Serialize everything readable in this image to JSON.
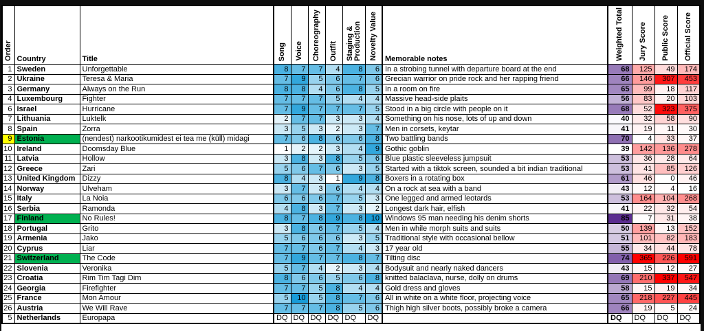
{
  "table": {
    "headers": {
      "order": "Order",
      "country": "Country",
      "title": "Title",
      "song": "Song",
      "voice": "Voice",
      "choreography": "Choreography",
      "outfit": "Outfit",
      "staging": "Staging & Production",
      "novelty": "Novelty Value",
      "notes": "Memorable notes",
      "weighted": "Weighted Total",
      "jury": "Jury Score",
      "public": "Public Score",
      "official": "Official Score"
    },
    "rows": [
      {
        "order": 1,
        "country": "Sweden",
        "title": "Unforgettable",
        "scores": [
          8,
          7,
          7,
          4,
          8,
          6
        ],
        "note": "In a strobing tunnel with departure board at the end",
        "weighted": 68,
        "jury": 125,
        "public": 49,
        "official": 174
      },
      {
        "order": 2,
        "country": "Ukraine",
        "title": "Teresa & Maria",
        "scores": [
          7,
          9,
          5,
          6,
          7,
          6
        ],
        "note": "Grecian warrior on pride rock and her rapping friend",
        "weighted": 66,
        "jury": 146,
        "public": 307,
        "official": 453
      },
      {
        "order": 3,
        "country": "Germany",
        "title": "Always on the Run",
        "scores": [
          8,
          8,
          4,
          6,
          8,
          5
        ],
        "note": "In a room on fire",
        "weighted": 65,
        "jury": 99,
        "public": 18,
        "official": 117
      },
      {
        "order": 4,
        "country": "Luxembourg",
        "title": "Fighter",
        "scores": [
          7,
          7,
          7,
          5,
          4,
          4
        ],
        "note": "Massive head-side plaits",
        "weighted": 56,
        "jury": 83,
        "public": 20,
        "official": 103
      },
      {
        "order": 6,
        "country": "Israel",
        "title": "Hurricane",
        "scores": [
          7,
          9,
          7,
          7,
          7,
          5
        ],
        "note": "Stood in a big circle with people on it",
        "weighted": 68,
        "jury": 52,
        "public": 323,
        "official": 375
      },
      {
        "order": 7,
        "country": "Lithuania",
        "title": "Luktelk",
        "scores": [
          2,
          7,
          7,
          3,
          3,
          4
        ],
        "note": "Something on his nose, lots of up and down",
        "weighted": 40,
        "jury": 32,
        "public": 58,
        "official": 90
      },
      {
        "order": 8,
        "country": "Spain",
        "title": "Zorra",
        "scores": [
          3,
          5,
          3,
          2,
          3,
          7
        ],
        "note": "Men in corsets, keytar",
        "weighted": 41,
        "jury": 19,
        "public": 11,
        "official": 30
      },
      {
        "order": 9,
        "country": "Estonia",
        "title": "(nendest) narkootikumidest ei tea me (küll) midagi",
        "scores": [
          7,
          6,
          8,
          6,
          6,
          8
        ],
        "note": "Two battling bands",
        "weighted": 70,
        "jury": 4,
        "public": 33,
        "official": 37,
        "order_highlight": "yellow",
        "country_highlight": "green"
      },
      {
        "order": 10,
        "country": "Ireland",
        "title": "Doomsday Blue",
        "scores": [
          1,
          2,
          2,
          3,
          4,
          9
        ],
        "note": "Gothic goblin",
        "weighted": 39,
        "jury": 142,
        "public": 136,
        "official": 278
      },
      {
        "order": 11,
        "country": "Latvia",
        "title": "Hollow",
        "scores": [
          3,
          8,
          3,
          8,
          5,
          6
        ],
        "note": "Blue plastic sleeveless jumpsuit",
        "weighted": 53,
        "jury": 36,
        "public": 28,
        "official": 64
      },
      {
        "order": 12,
        "country": "Greece",
        "title": "Zari",
        "scores": [
          5,
          6,
          7,
          6,
          3,
          5
        ],
        "note": "Started with a tiktok screen, sounded a bit indian traditional",
        "weighted": 53,
        "jury": 41,
        "public": 85,
        "official": 126
      },
      {
        "order": 13,
        "country": "United Kingdom",
        "title": "Dizzy",
        "scores": [
          8,
          4,
          3,
          1,
          9,
          8
        ],
        "note": "Boxers in a rotating box",
        "weighted": 61,
        "jury": 46,
        "public": 0,
        "official": 46
      },
      {
        "order": 14,
        "country": "Norway",
        "title": "Ulveham",
        "scores": [
          3,
          7,
          3,
          6,
          4,
          4
        ],
        "note": "On a rock at sea with a band",
        "weighted": 43,
        "jury": 12,
        "public": 4,
        "official": 16
      },
      {
        "order": 15,
        "country": "Italy",
        "title": "La Noia",
        "scores": [
          6,
          6,
          6,
          7,
          5,
          3
        ],
        "note": "One legged and armed leotards",
        "weighted": 53,
        "jury": 164,
        "public": 104,
        "official": 268
      },
      {
        "order": 16,
        "country": "Serbia",
        "title": "Ramonda",
        "scores": [
          4,
          8,
          3,
          7,
          3,
          2
        ],
        "note": "Longest dark hair, elfish",
        "weighted": 41,
        "jury": 22,
        "public": 32,
        "official": 54
      },
      {
        "order": 17,
        "country": "Finland",
        "title": "No Rules!",
        "scores": [
          8,
          7,
          8,
          9,
          8,
          10
        ],
        "note": "Windows 95 man needing his denim shorts",
        "weighted": 85,
        "jury": 7,
        "public": 31,
        "official": 38,
        "country_highlight": "green"
      },
      {
        "order": 18,
        "country": "Portugal",
        "title": "Grito",
        "scores": [
          3,
          8,
          6,
          7,
          5,
          4
        ],
        "note": "Men in while morph suits and suits",
        "weighted": 50,
        "jury": 139,
        "public": 13,
        "official": 152
      },
      {
        "order": 19,
        "country": "Armenia",
        "title": "Jako",
        "scores": [
          5,
          6,
          6,
          6,
          3,
          5
        ],
        "note": "Traditional style with occasional bellow",
        "weighted": 51,
        "jury": 101,
        "public": 82,
        "official": 183
      },
      {
        "order": 20,
        "country": "Cyprus",
        "title": "Liar",
        "scores": [
          7,
          7,
          6,
          7,
          4,
          3
        ],
        "note": "17 year old",
        "weighted": 55,
        "jury": 34,
        "public": 44,
        "official": 78
      },
      {
        "order": 21,
        "country": "Switzerland",
        "title": "The Code",
        "scores": [
          7,
          9,
          7,
          7,
          8,
          7
        ],
        "note": "Tilting disc",
        "weighted": 74,
        "jury": 365,
        "public": 226,
        "official": 591,
        "country_highlight": "green"
      },
      {
        "order": 22,
        "country": "Slovenia",
        "title": "Veronika",
        "scores": [
          5,
          7,
          4,
          2,
          3,
          4
        ],
        "note": "Bodysuit and nearly naked dancers",
        "weighted": 43,
        "jury": 15,
        "public": 12,
        "official": 27
      },
      {
        "order": 23,
        "country": "Croatia",
        "title": "Rim Tim Tagi Dim",
        "scores": [
          8,
          6,
          6,
          5,
          6,
          8
        ],
        "note": "knitted balaclava, nurse, dolly on drums",
        "weighted": 69,
        "jury": 210,
        "public": 337,
        "official": 547
      },
      {
        "order": 24,
        "country": "Georgia",
        "title": "Firefighter",
        "scores": [
          7,
          7,
          5,
          8,
          4,
          4
        ],
        "note": "Gold dress and gloves",
        "weighted": 58,
        "jury": 15,
        "public": 19,
        "official": 34
      },
      {
        "order": 25,
        "country": "France",
        "title": "Mon Amour",
        "scores": [
          5,
          10,
          5,
          8,
          7,
          6
        ],
        "note": "All in white on a white floor, projecting voice",
        "weighted": 65,
        "jury": 218,
        "public": 227,
        "official": 445
      },
      {
        "order": 26,
        "country": "Austria",
        "title": "We Will Rave",
        "scores": [
          7,
          7,
          7,
          8,
          5,
          6
        ],
        "note": "Thigh high silver boots, possibly broke a camera",
        "weighted": 66,
        "jury": 19,
        "public": 5,
        "official": 24
      },
      {
        "order": 5,
        "country": "Netherlands",
        "title": "Europapa",
        "scores": [
          "DQ",
          "DQ",
          "DQ",
          "DQ",
          "DQ",
          "DQ"
        ],
        "note": "",
        "weighted": "DQ",
        "jury": "DQ",
        "public": "DQ",
        "official": "DQ"
      }
    ]
  },
  "colors": {
    "score_high": "#189CD8",
    "weighted_high": "#5B2D90",
    "rank_high": "#FF0000",
    "highlight_yellow": "#FFFF00",
    "highlight_green": "#00B050",
    "frame": "#0d0d0d"
  },
  "scales": {
    "score": {
      "min": 1,
      "max": 10
    },
    "weighted": {
      "min": 39,
      "max": 85
    },
    "jury": {
      "min": 4,
      "max": 365
    },
    "public": {
      "min": 0,
      "max": 337
    },
    "official": {
      "min": 16,
      "max": 591
    }
  }
}
